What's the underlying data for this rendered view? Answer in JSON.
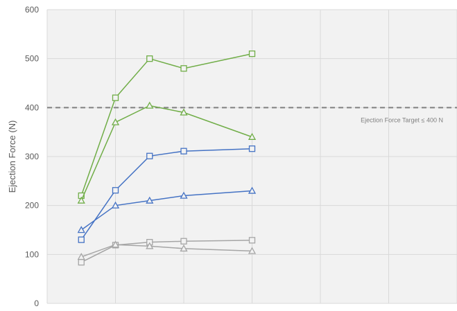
{
  "chart_data": {
    "type": "line",
    "ylabel": "Ejection Force (N)",
    "ylim": [
      0,
      600
    ],
    "yticks": [
      0,
      100,
      200,
      300,
      400,
      500,
      600
    ],
    "grid": true,
    "x_ticks_labeled": false,
    "reference_line": {
      "value": 400,
      "label": "Ejection Force Target ≤ 400 N",
      "color": "#808080",
      "style": "dashed"
    },
    "series": [
      {
        "marker": "square",
        "color": "#70AD47",
        "points": [
          [
            0.5,
            220
          ],
          [
            1,
            420
          ],
          [
            1.5,
            500
          ],
          [
            2,
            480
          ],
          [
            3,
            510
          ]
        ]
      },
      {
        "marker": "triangle",
        "color": "#70AD47",
        "points": [
          [
            0.5,
            210
          ],
          [
            1,
            370
          ],
          [
            1.5,
            404
          ],
          [
            2,
            390
          ],
          [
            3,
            340
          ]
        ]
      },
      {
        "marker": "square",
        "color": "#4472C4",
        "points": [
          [
            0.5,
            130
          ],
          [
            1,
            231
          ],
          [
            1.5,
            301
          ],
          [
            2,
            311
          ],
          [
            3,
            316
          ]
        ]
      },
      {
        "marker": "triangle",
        "color": "#4472C4",
        "points": [
          [
            0.5,
            150
          ],
          [
            1,
            200
          ],
          [
            1.5,
            210
          ],
          [
            2,
            220
          ],
          [
            3,
            230
          ]
        ]
      },
      {
        "marker": "square",
        "color": "#A5A5A5",
        "points": [
          [
            0.5,
            84
          ],
          [
            1,
            119
          ],
          [
            1.5,
            125
          ],
          [
            2,
            127
          ],
          [
            3,
            129
          ]
        ]
      },
      {
        "marker": "triangle",
        "color": "#A5A5A5",
        "points": [
          [
            0.5,
            95
          ],
          [
            1,
            120
          ],
          [
            1.5,
            117
          ],
          [
            2,
            112
          ],
          [
            3,
            107
          ]
        ]
      }
    ]
  },
  "colors": {
    "plot_background": "#F2F2F2",
    "gridline": "#D9D9D9",
    "axis_text": "#595959"
  }
}
